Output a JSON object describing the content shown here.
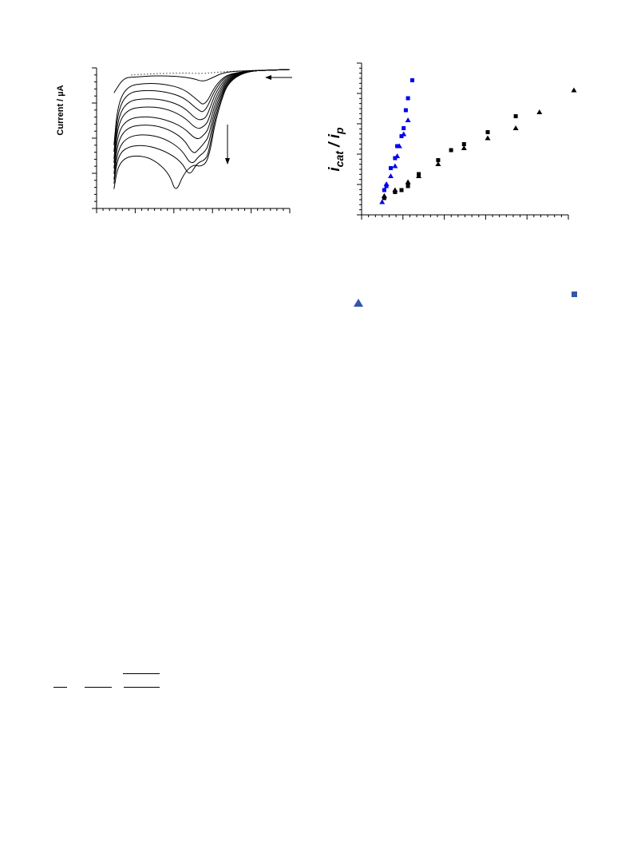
{
  "chart_data": [
    {
      "type": "line",
      "ylabel": "Current / µA",
      "x_axis": {
        "major_ticks": 6,
        "minor_ticks": 5,
        "tick_labels": []
      },
      "y_axis": {
        "major_ticks": 5,
        "minor_ticks": 4,
        "tick_labels": []
      },
      "grid": false,
      "annotations": [
        "arrow-left-scan-direction",
        "arrow-down-increasing-concentration"
      ],
      "series": [
        {
          "style": "dotted",
          "points": [
            [
              0.18,
              0.04
            ],
            [
              0.3,
              0.03
            ],
            [
              0.45,
              0.025
            ],
            [
              0.55,
              0.03
            ],
            [
              0.62,
              0.02
            ],
            [
              0.75,
              0.01
            ],
            [
              1.0,
              0.0
            ]
          ]
        },
        {
          "style": "solid",
          "points": [
            [
              0.09,
              0.17
            ],
            [
              0.14,
              0.06
            ],
            [
              0.2,
              0.055
            ],
            [
              0.3,
              0.045
            ],
            [
              0.42,
              0.05
            ],
            [
              0.5,
              0.065
            ],
            [
              0.55,
              0.09
            ],
            [
              0.6,
              0.06
            ],
            [
              0.66,
              0.02
            ],
            [
              0.75,
              0.01
            ],
            [
              1.0,
              0.0
            ]
          ]
        },
        {
          "style": "solid",
          "points": [
            [
              0.09,
              0.55
            ],
            [
              0.11,
              0.25
            ],
            [
              0.16,
              0.12
            ],
            [
              0.25,
              0.1
            ],
            [
              0.35,
              0.105
            ],
            [
              0.45,
              0.14
            ],
            [
              0.52,
              0.22
            ],
            [
              0.56,
              0.27
            ],
            [
              0.62,
              0.1
            ],
            [
              0.7,
              0.015
            ],
            [
              1.0,
              0.0
            ]
          ]
        },
        {
          "style": "solid",
          "points": [
            [
              0.09,
              0.6
            ],
            [
              0.11,
              0.3
            ],
            [
              0.16,
              0.17
            ],
            [
              0.25,
              0.15
            ],
            [
              0.35,
              0.16
            ],
            [
              0.45,
              0.2
            ],
            [
              0.52,
              0.29
            ],
            [
              0.56,
              0.32
            ],
            [
              0.62,
              0.12
            ],
            [
              0.7,
              0.015
            ],
            [
              1.0,
              0.0
            ]
          ]
        },
        {
          "style": "solid",
          "points": [
            [
              0.09,
              0.65
            ],
            [
              0.11,
              0.35
            ],
            [
              0.16,
              0.23
            ],
            [
              0.25,
              0.21
            ],
            [
              0.35,
              0.22
            ],
            [
              0.45,
              0.27
            ],
            [
              0.52,
              0.37
            ],
            [
              0.56,
              0.36
            ],
            [
              0.58,
              0.31
            ],
            [
              0.62,
              0.15
            ],
            [
              0.7,
              0.015
            ],
            [
              1.0,
              0.0
            ]
          ]
        },
        {
          "style": "solid",
          "points": [
            [
              0.09,
              0.68
            ],
            [
              0.11,
              0.4
            ],
            [
              0.16,
              0.29
            ],
            [
              0.25,
              0.27
            ],
            [
              0.35,
              0.28
            ],
            [
              0.45,
              0.34
            ],
            [
              0.52,
              0.44
            ],
            [
              0.56,
              0.41
            ],
            [
              0.58,
              0.37
            ],
            [
              0.62,
              0.18
            ],
            [
              0.7,
              0.015
            ],
            [
              1.0,
              0.0
            ]
          ]
        },
        {
          "style": "solid",
          "points": [
            [
              0.09,
              0.72
            ],
            [
              0.11,
              0.46
            ],
            [
              0.16,
              0.36
            ],
            [
              0.25,
              0.34
            ],
            [
              0.35,
              0.36
            ],
            [
              0.45,
              0.42
            ],
            [
              0.52,
              0.52
            ],
            [
              0.56,
              0.47
            ],
            [
              0.58,
              0.43
            ],
            [
              0.62,
              0.21
            ],
            [
              0.7,
              0.015
            ],
            [
              1.0,
              0.0
            ]
          ]
        },
        {
          "style": "solid",
          "points": [
            [
              0.09,
              0.76
            ],
            [
              0.11,
              0.52
            ],
            [
              0.16,
              0.42
            ],
            [
              0.25,
              0.4
            ],
            [
              0.35,
              0.42
            ],
            [
              0.45,
              0.5
            ],
            [
              0.5,
              0.62
            ],
            [
              0.53,
              0.58
            ],
            [
              0.56,
              0.53
            ],
            [
              0.58,
              0.49
            ],
            [
              0.62,
              0.24
            ],
            [
              0.7,
              0.015
            ],
            [
              1.0,
              0.0
            ]
          ]
        },
        {
          "style": "solid",
          "points": [
            [
              0.09,
              0.8
            ],
            [
              0.11,
              0.58
            ],
            [
              0.16,
              0.49
            ],
            [
              0.25,
              0.47
            ],
            [
              0.35,
              0.5
            ],
            [
              0.44,
              0.58
            ],
            [
              0.49,
              0.7
            ],
            [
              0.53,
              0.63
            ],
            [
              0.56,
              0.6
            ],
            [
              0.58,
              0.55
            ],
            [
              0.62,
              0.27
            ],
            [
              0.7,
              0.015
            ],
            [
              1.0,
              0.0
            ]
          ]
        },
        {
          "style": "solid",
          "points": [
            [
              0.09,
              0.83
            ],
            [
              0.11,
              0.63
            ],
            [
              0.16,
              0.56
            ],
            [
              0.25,
              0.55
            ],
            [
              0.35,
              0.59
            ],
            [
              0.44,
              0.67
            ],
            [
              0.48,
              0.78
            ],
            [
              0.52,
              0.68
            ],
            [
              0.56,
              0.66
            ],
            [
              0.58,
              0.61
            ],
            [
              0.62,
              0.3
            ],
            [
              0.7,
              0.015
            ],
            [
              1.0,
              0.0
            ]
          ]
        },
        {
          "style": "solid",
          "points": [
            [
              0.09,
              0.87
            ],
            [
              0.11,
              0.7
            ],
            [
              0.16,
              0.63
            ],
            [
              0.25,
              0.63
            ],
            [
              0.32,
              0.68
            ],
            [
              0.38,
              0.77
            ],
            [
              0.41,
              0.9
            ],
            [
              0.45,
              0.76
            ],
            [
              0.5,
              0.69
            ],
            [
              0.54,
              0.71
            ],
            [
              0.58,
              0.66
            ],
            [
              0.62,
              0.33
            ],
            [
              0.7,
              0.015
            ],
            [
              1.0,
              0.0
            ]
          ]
        }
      ]
    },
    {
      "type": "scatter",
      "ylabel": "i",
      "ylabel_sub1": "cat",
      "ylabel_mid": " / i",
      "ylabel_sub2": "p",
      "x_axis": {
        "major_ticks": 6,
        "minor_ticks": 5,
        "tick_labels": []
      },
      "y_axis": {
        "major_ticks": 6,
        "minor_ticks": 5,
        "tick_labels": []
      },
      "grid": false,
      "series": [
        {
          "marker": "square",
          "color": "#0000ee",
          "points": [
            [
              0.02,
              0.06
            ],
            [
              0.03,
              0.08
            ],
            [
              0.05,
              0.17
            ],
            [
              0.07,
              0.22
            ],
            [
              0.08,
              0.28
            ],
            [
              0.1,
              0.33
            ],
            [
              0.11,
              0.37
            ],
            [
              0.12,
              0.46
            ],
            [
              0.13,
              0.52
            ],
            [
              0.15,
              0.61
            ]
          ]
        },
        {
          "marker": "triangle",
          "color": "#0000ee",
          "points": [
            [
              0.01,
              0.0
            ],
            [
              0.02,
              0.03
            ],
            [
              0.03,
              0.09
            ],
            [
              0.05,
              0.13
            ],
            [
              0.07,
              0.18
            ],
            [
              0.08,
              0.23
            ],
            [
              0.09,
              0.28
            ],
            [
              0.11,
              0.34
            ],
            [
              0.13,
              0.41
            ]
          ]
        },
        {
          "marker": "square",
          "color": "#000000",
          "points": [
            [
              0.02,
              0.02
            ],
            [
              0.07,
              0.05
            ],
            [
              0.1,
              0.06
            ],
            [
              0.13,
              0.08
            ],
            [
              0.18,
              0.14
            ],
            [
              0.27,
              0.21
            ],
            [
              0.33,
              0.26
            ],
            [
              0.39,
              0.29
            ],
            [
              0.5,
              0.35
            ],
            [
              0.63,
              0.43
            ]
          ]
        },
        {
          "marker": "triangle",
          "color": "#000000",
          "points": [
            [
              0.02,
              0.03
            ],
            [
              0.07,
              0.06
            ],
            [
              0.13,
              0.1
            ],
            [
              0.18,
              0.13
            ],
            [
              0.27,
              0.19
            ],
            [
              0.39,
              0.27
            ],
            [
              0.5,
              0.32
            ],
            [
              0.63,
              0.37
            ],
            [
              0.74,
              0.45
            ],
            [
              0.9,
              0.56
            ]
          ]
        }
      ]
    }
  ],
  "legend_markers": [
    {
      "marker": "square",
      "color": "#3355aa"
    },
    {
      "marker": "triangle",
      "color": "#3355aa"
    }
  ]
}
